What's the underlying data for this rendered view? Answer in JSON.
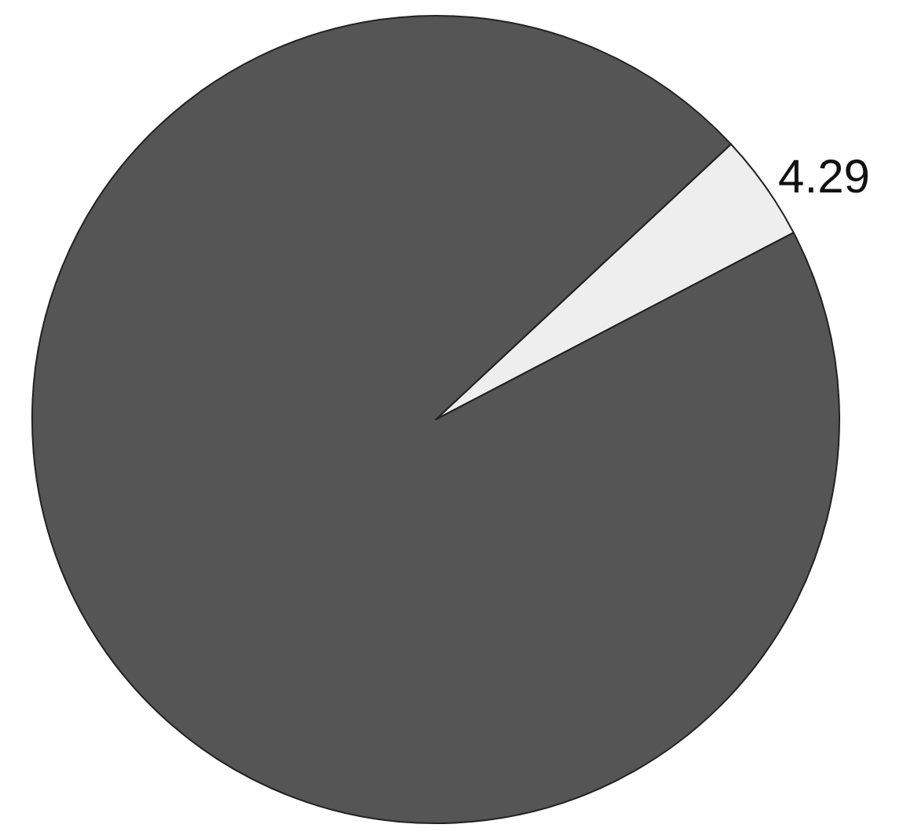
{
  "chart_data": {
    "type": "pie",
    "categories": [
      null,
      null
    ],
    "values": [
      4.29,
      95.71
    ],
    "colors": [
      "#eeeeee",
      "#555555"
    ],
    "value_labels": [
      "4.29",
      null
    ],
    "legend": false
  }
}
